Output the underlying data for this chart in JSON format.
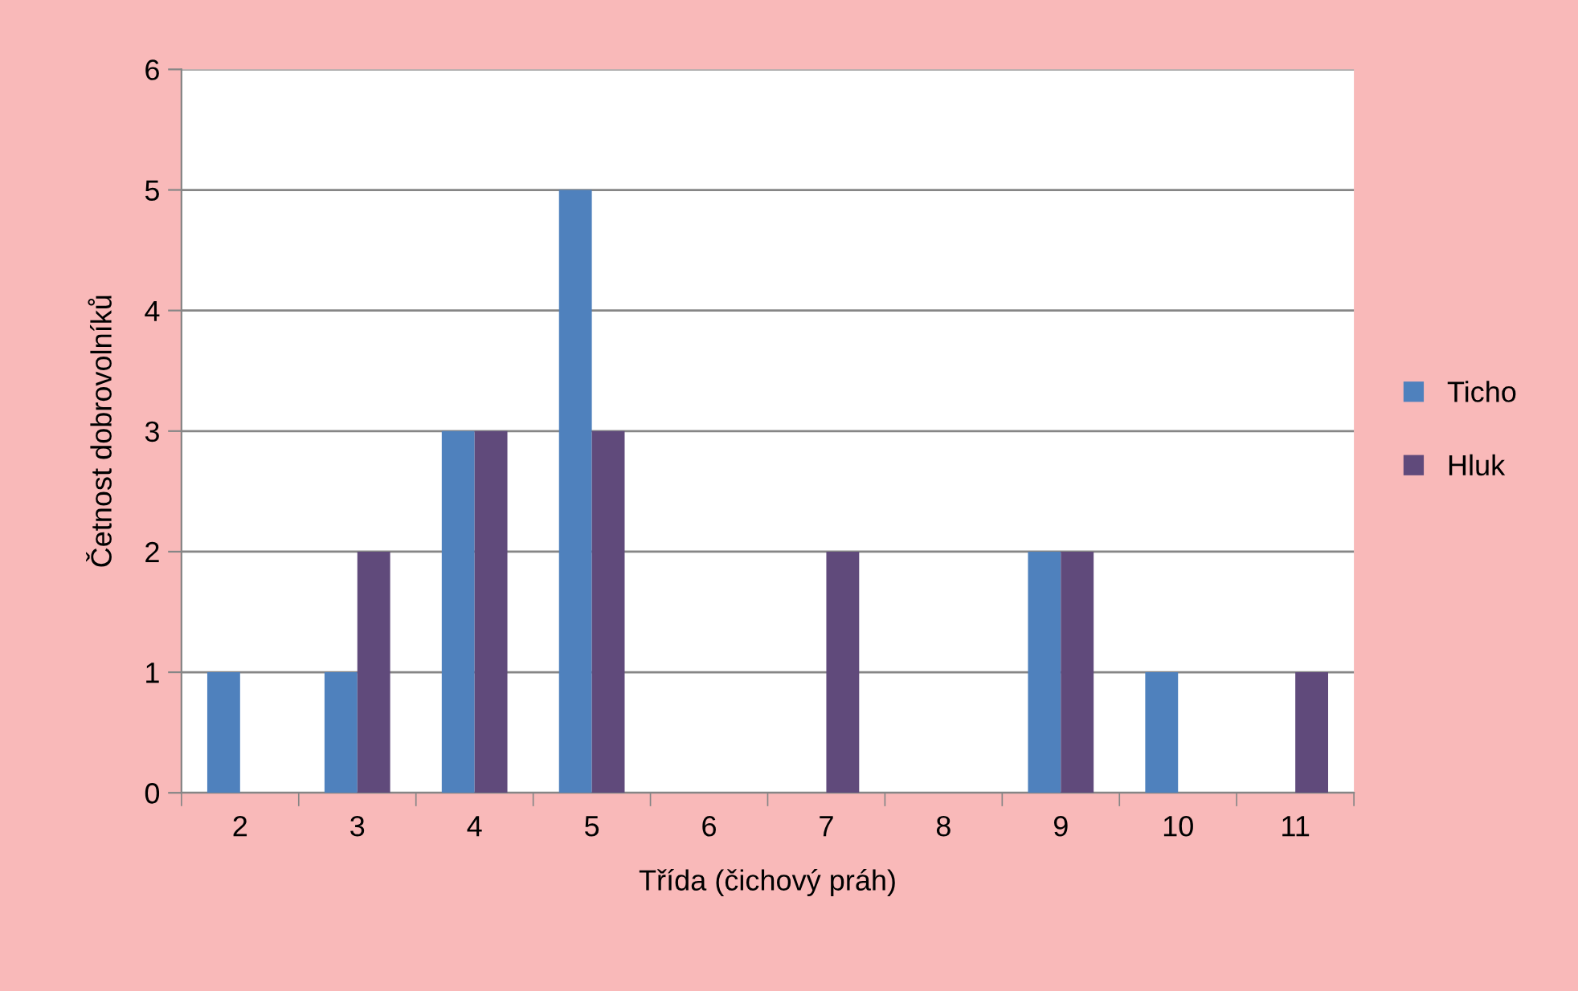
{
  "chart_data": {
    "type": "bar",
    "xlabel": "Třída (čichový práh)",
    "ylabel": "Četnost dobrovolníků",
    "categories": [
      "2",
      "3",
      "4",
      "5",
      "6",
      "7",
      "8",
      "9",
      "10",
      "11"
    ],
    "series": [
      {
        "name": "Ticho",
        "color": "#4f81bd",
        "values": [
          1,
          1,
          3,
          5,
          0,
          0,
          0,
          2,
          1,
          0
        ]
      },
      {
        "name": "Hluk",
        "color": "#604a7b",
        "values": [
          0,
          2,
          3,
          3,
          0,
          2,
          0,
          2,
          0,
          1
        ]
      }
    ],
    "ylim": [
      0,
      6
    ],
    "yticks": [
      0,
      1,
      2,
      3,
      4,
      5,
      6
    ],
    "grid": "y",
    "legend": "right"
  }
}
